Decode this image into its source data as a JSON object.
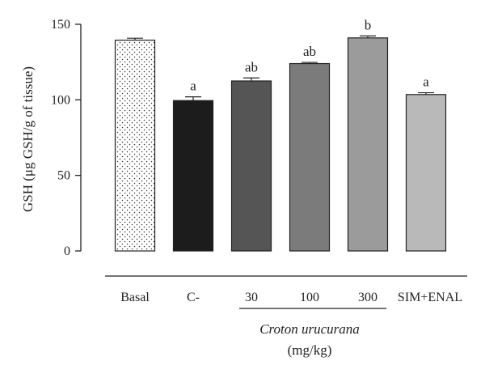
{
  "chart_data": {
    "type": "bar",
    "ylabel": "GSH (μg GSH/g of tissue)",
    "ylim": [
      0,
      150
    ],
    "yticks": [
      0,
      50,
      100,
      150
    ],
    "grid": false,
    "categories": [
      "Basal",
      "C-",
      "30",
      "100",
      "300",
      "SIM+ENAL"
    ],
    "values": [
      139.5,
      99.5,
      112.5,
      124,
      141,
      103.5
    ],
    "errors": [
      1.3,
      2.5,
      2.0,
      0.8,
      1.3,
      1.2
    ],
    "significance": [
      "",
      "a",
      "ab",
      "ab",
      "b",
      "a"
    ],
    "fills": [
      "dotted",
      "#1c1c1c",
      "#555555",
      "#7b7b7b",
      "#9b9b9b",
      "#b9b9b9"
    ],
    "group": {
      "name": "Croton urucurana",
      "unit": "(mg/kg)",
      "members": [
        "30",
        "100",
        "300"
      ]
    }
  }
}
